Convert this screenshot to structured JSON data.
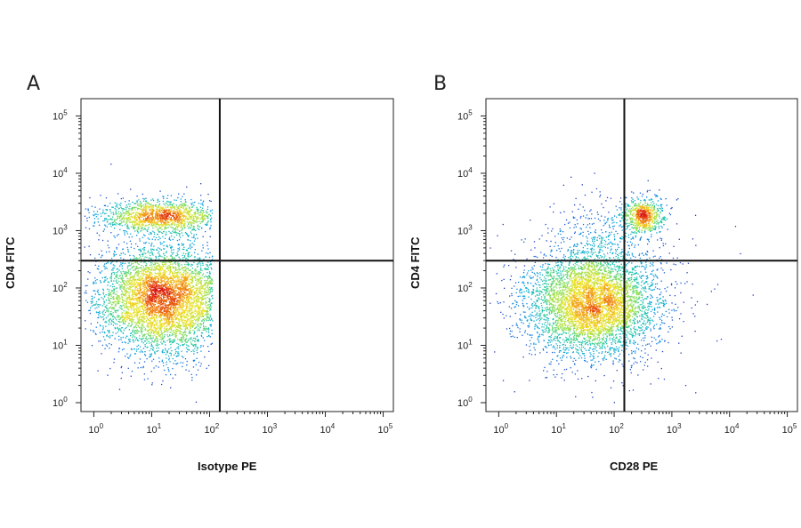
{
  "panels": [
    {
      "letter": "A",
      "ylabel": "CD4 FITC",
      "xlabel": "Isotype PE"
    },
    {
      "letter": "B",
      "ylabel": "CD4 FITC",
      "xlabel": "CD28 PE"
    }
  ],
  "chart_data": [
    {
      "type": "scatter",
      "subtype": "flow-cytometry-density-dot-plot",
      "panel": "A",
      "title": "",
      "xlabel": "Isotype PE",
      "ylabel": "CD4 FITC",
      "xscale": "log",
      "yscale": "log",
      "xlim": [
        0.6,
        150000
      ],
      "ylim": [
        0.7,
        200000
      ],
      "x_ticks": [
        "10^0",
        "10^1",
        "10^2",
        "10^3",
        "10^4",
        "10^5"
      ],
      "y_ticks": [
        "10^0",
        "10^1",
        "10^2",
        "10^3",
        "10^4",
        "10^5"
      ],
      "quadrant_gate": {
        "x": 150,
        "y": 300
      },
      "color_scale": [
        "#1a1a8c",
        "#1e4fd6",
        "#00a0e0",
        "#20c8a0",
        "#a0e040",
        "#f0e020",
        "#f08010",
        "#d81010"
      ],
      "populations": [
        {
          "name": "",
          "x_center": 16,
          "y_center": 65,
          "x_spread_decades": 0.55,
          "y_spread_decades": 0.45,
          "events": 5200,
          "peak": "red"
        },
        {
          "name": "",
          "x_center": 14,
          "y_center": 1800,
          "x_spread_decades": 0.5,
          "y_spread_decades": 0.14,
          "events": 1500,
          "peak": "yellow"
        }
      ],
      "grid": false,
      "legend": "none"
    },
    {
      "type": "scatter",
      "subtype": "flow-cytometry-density-dot-plot",
      "panel": "B",
      "title": "",
      "xlabel": "CD28 PE",
      "ylabel": "CD4 FITC",
      "xscale": "log",
      "yscale": "log",
      "xlim": [
        0.6,
        150000
      ],
      "ylim": [
        0.7,
        200000
      ],
      "x_ticks": [
        "10^0",
        "10^1",
        "10^2",
        "10^3",
        "10^4",
        "10^5"
      ],
      "y_ticks": [
        "10^0",
        "10^1",
        "10^2",
        "10^3",
        "10^4",
        "10^5"
      ],
      "quadrant_gate": {
        "x": 150,
        "y": 300
      },
      "color_scale": [
        "#1a1a8c",
        "#1e4fd6",
        "#00a0e0",
        "#20c8a0",
        "#a0e040",
        "#f0e020",
        "#f08010",
        "#d81010"
      ],
      "populations": [
        {
          "name": "",
          "x_center": 40,
          "y_center": 55,
          "x_spread_decades": 0.55,
          "y_spread_decades": 0.45,
          "events": 5000,
          "peak": "orange"
        },
        {
          "name": "",
          "x_center": 320,
          "y_center": 1900,
          "x_spread_decades": 0.17,
          "y_spread_decades": 0.14,
          "events": 650,
          "peak": "red"
        },
        {
          "name": "",
          "x_center": 80,
          "y_center": 900,
          "x_spread_decades": 0.45,
          "y_spread_decades": 0.35,
          "events": 350,
          "peak": "blue"
        }
      ],
      "grid": false,
      "legend": "none"
    }
  ]
}
